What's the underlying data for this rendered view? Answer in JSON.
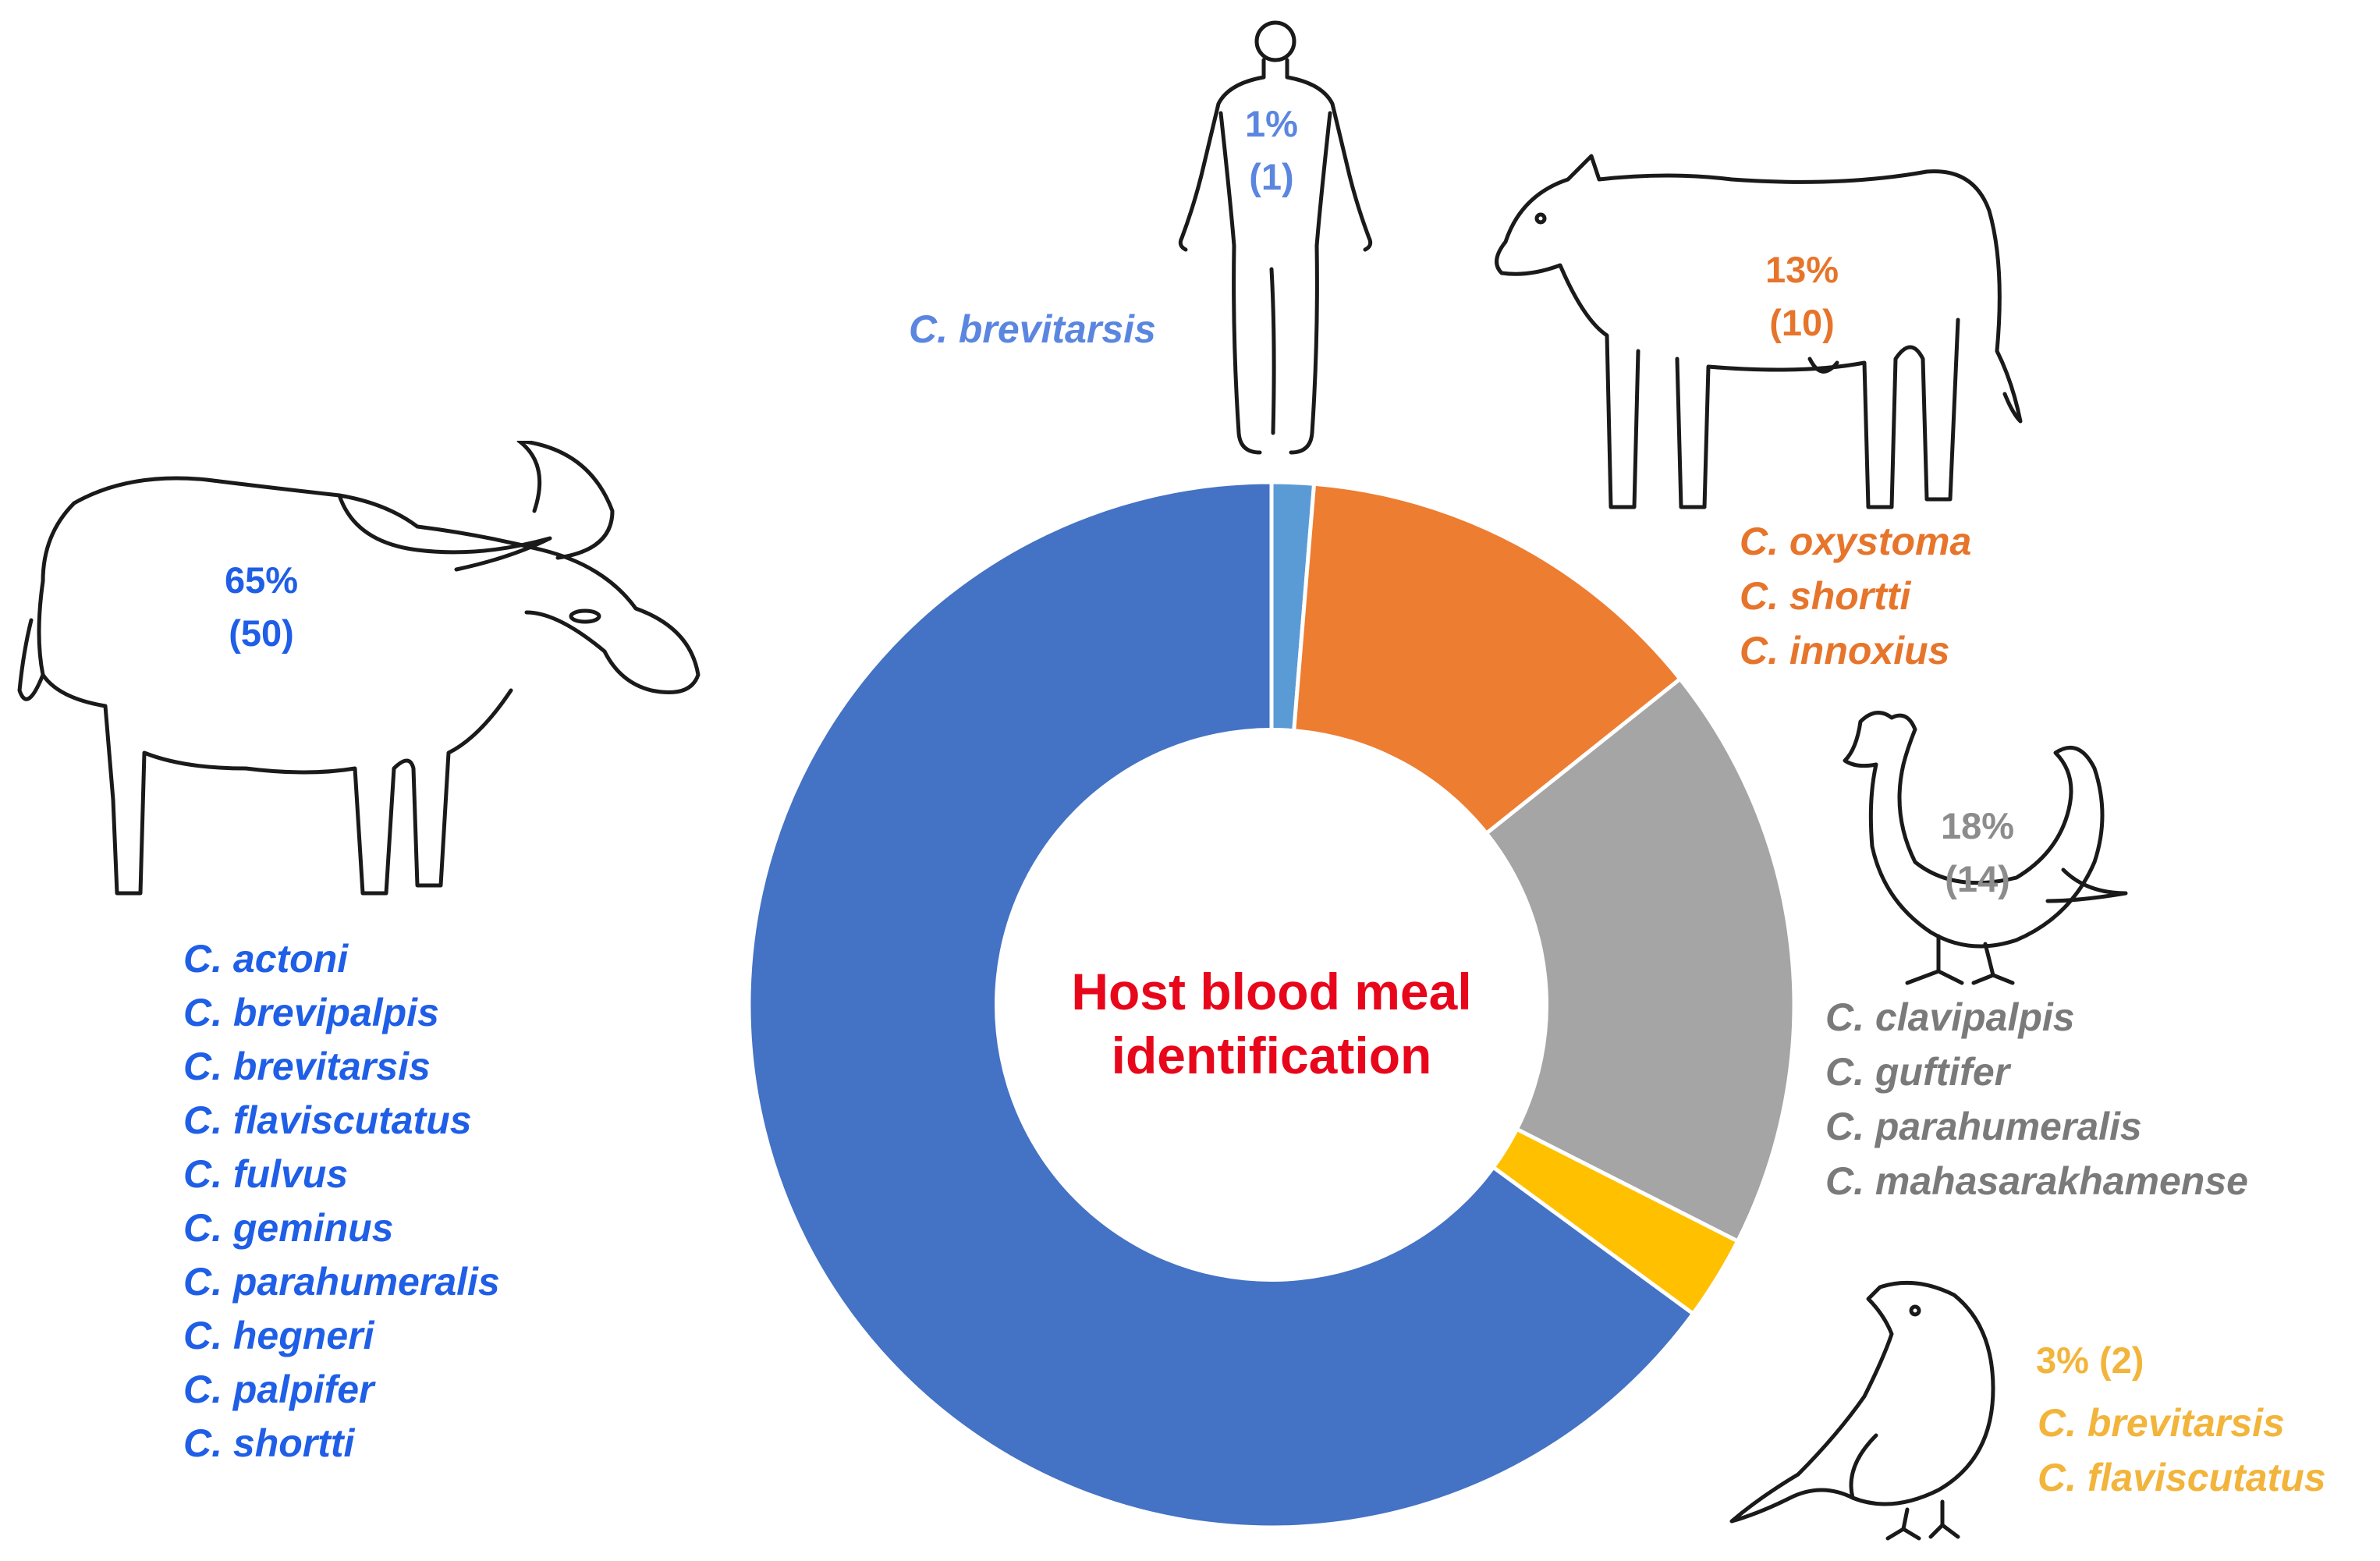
{
  "chart_data": {
    "type": "pie",
    "title": "Host blood meal identification",
    "categories": [
      "Human",
      "Cattle",
      "Chicken",
      "Bird",
      "Buffalo"
    ],
    "slices": [
      {
        "host": "Human",
        "value": 1,
        "percent_label": "1%",
        "count_label": "(1)",
        "color": "#5b9bd5",
        "species": [
          "C. brevitarsis"
        ]
      },
      {
        "host": "Cattle",
        "value": 10,
        "percent_label": "13%",
        "count_label": "(10)",
        "color": "#ed7d31",
        "species": [
          "C. oxystoma",
          "C. shortti",
          "C. innoxius"
        ]
      },
      {
        "host": "Chicken",
        "value": 14,
        "percent_label": "18%",
        "count_label": "(14)",
        "color": "#a5a5a5",
        "species": [
          "C. clavipalpis",
          "C. guftifer",
          "C. parahumeralis",
          "C. mahasarakhamense"
        ]
      },
      {
        "host": "Bird",
        "value": 2,
        "percent_label": "3% (2)",
        "count_label": "",
        "color": "#ffc000",
        "species": [
          "C. brevitarsis",
          "C. flaviscutatus"
        ]
      },
      {
        "host": "Buffalo",
        "value": 50,
        "percent_label": "65%",
        "count_label": "(50)",
        "color": "#4472c4",
        "species": [
          "C. actoni",
          "C. brevipalpis",
          "C. brevitarsis",
          "C. flaviscutatus",
          "C. fulvus",
          "C. geminus",
          "C. parahumeralis",
          "C. hegneri",
          "C. palpifer",
          "C. shortti"
        ]
      }
    ],
    "text_colors": {
      "Human": "#5b86e0",
      "Cattle": "#e6752b",
      "Chicken": "#8c8c8c",
      "Bird": "#f2b43a",
      "Buffalo": "#1f5ee6"
    },
    "icons": [
      "human-silhouette-icon",
      "cow-icon",
      "chicken-icon",
      "bird-icon",
      "buffalo-icon"
    ]
  }
}
